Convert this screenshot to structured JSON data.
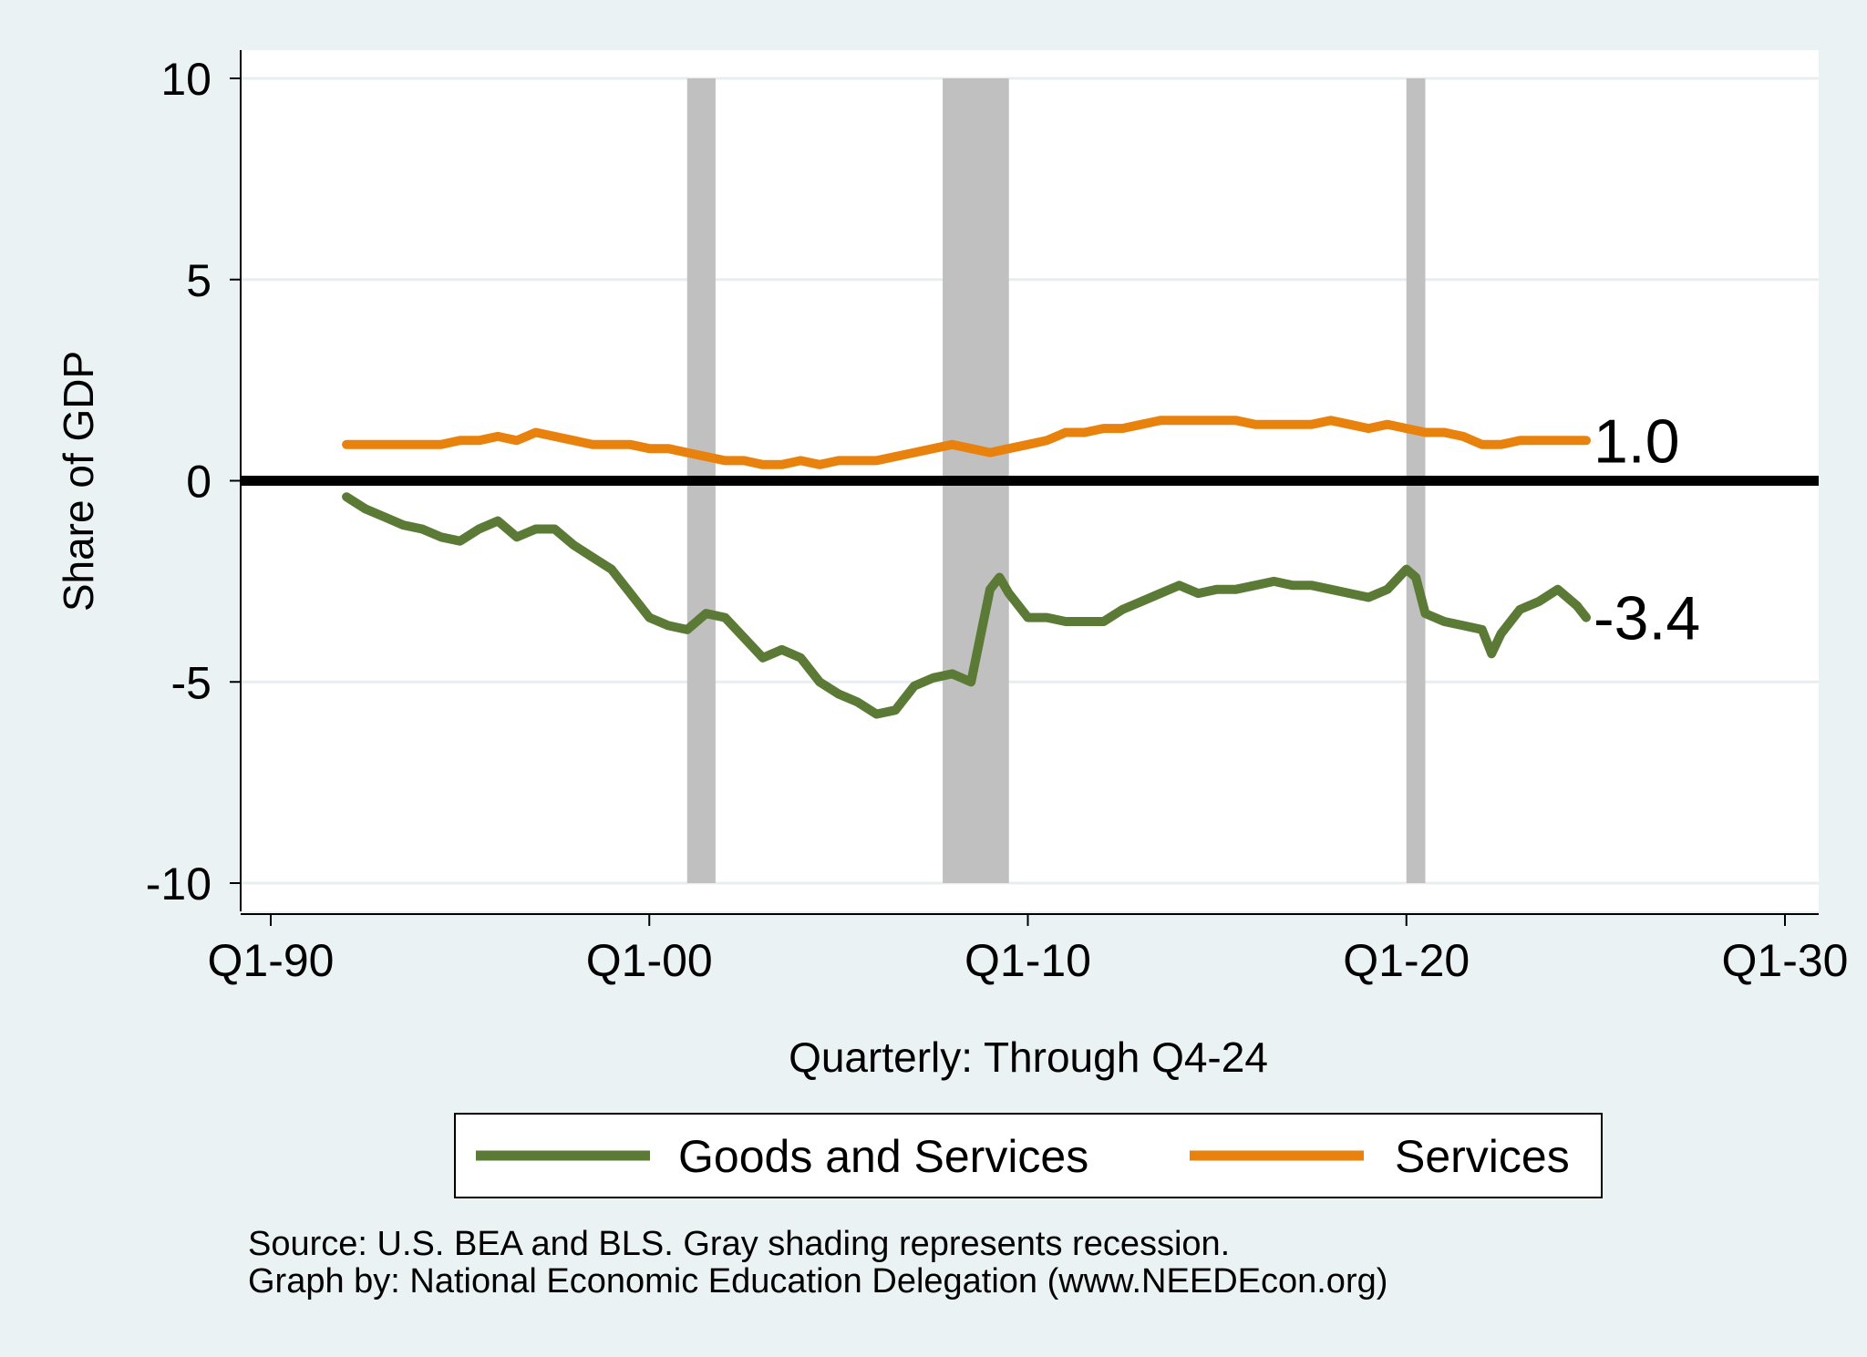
{
  "chart_data": {
    "type": "line",
    "ylabel": "Share of GDP",
    "xlabel": "Quarterly: Through Q4-24",
    "x_ticks": [
      {
        "value": 1990,
        "label": "Q1-90"
      },
      {
        "value": 2000,
        "label": "Q1-00"
      },
      {
        "value": 2010,
        "label": "Q1-10"
      },
      {
        "value": 2020,
        "label": "Q1-20"
      },
      {
        "value": 2030,
        "label": "Q1-30"
      }
    ],
    "y_ticks": [
      {
        "value": 10,
        "label": "10"
      },
      {
        "value": 5,
        "label": "5"
      },
      {
        "value": 0,
        "label": "0"
      },
      {
        "value": -5,
        "label": "-5"
      },
      {
        "value": -10,
        "label": "-10"
      }
    ],
    "xlim": [
      1990,
      2030
    ],
    "ylim": [
      -10,
      10
    ],
    "grid": true,
    "legend_position": "bottom",
    "zero_line": true,
    "recessions": [
      {
        "start": 2001.0,
        "end": 2001.75
      },
      {
        "start": 2007.75,
        "end": 2009.5
      },
      {
        "start": 2020.0,
        "end": 2020.5
      }
    ],
    "series": [
      {
        "name": "Goods and Services",
        "color": "#5a7a35",
        "end_label": "-3.4",
        "x": [
          1992.0,
          1992.5,
          1993.0,
          1993.5,
          1994.0,
          1994.5,
          1995.0,
          1995.5,
          1996.0,
          1996.5,
          1997.0,
          1997.5,
          1998.0,
          1998.5,
          1999.0,
          1999.5,
          2000.0,
          2000.5,
          2001.0,
          2001.5,
          2002.0,
          2002.5,
          2003.0,
          2003.5,
          2004.0,
          2004.5,
          2005.0,
          2005.5,
          2006.0,
          2006.5,
          2007.0,
          2007.5,
          2008.0,
          2008.5,
          2009.0,
          2009.25,
          2009.5,
          2010.0,
          2010.5,
          2011.0,
          2011.5,
          2012.0,
          2012.5,
          2013.0,
          2013.5,
          2014.0,
          2014.5,
          2015.0,
          2015.5,
          2016.0,
          2016.5,
          2017.0,
          2017.5,
          2018.0,
          2018.5,
          2019.0,
          2019.5,
          2020.0,
          2020.25,
          2020.5,
          2021.0,
          2021.5,
          2022.0,
          2022.25,
          2022.5,
          2023.0,
          2023.5,
          2024.0,
          2024.5,
          2024.75
        ],
        "y": [
          -0.4,
          -0.7,
          -0.9,
          -1.1,
          -1.2,
          -1.4,
          -1.5,
          -1.2,
          -1.0,
          -1.4,
          -1.2,
          -1.2,
          -1.6,
          -1.9,
          -2.2,
          -2.8,
          -3.4,
          -3.6,
          -3.7,
          -3.3,
          -3.4,
          -3.9,
          -4.4,
          -4.2,
          -4.4,
          -5.0,
          -5.3,
          -5.5,
          -5.8,
          -5.7,
          -5.1,
          -4.9,
          -4.8,
          -5.0,
          -2.7,
          -2.4,
          -2.8,
          -3.4,
          -3.4,
          -3.5,
          -3.5,
          -3.5,
          -3.2,
          -3.0,
          -2.8,
          -2.6,
          -2.8,
          -2.7,
          -2.7,
          -2.6,
          -2.5,
          -2.6,
          -2.6,
          -2.7,
          -2.8,
          -2.9,
          -2.7,
          -2.2,
          -2.4,
          -3.3,
          -3.5,
          -3.6,
          -3.7,
          -4.3,
          -3.8,
          -3.2,
          -3.0,
          -2.7,
          -3.1,
          -3.4
        ]
      },
      {
        "name": "Services",
        "color": "#e8820c",
        "end_label": "1.0",
        "x": [
          1992.0,
          1992.5,
          1993.0,
          1993.5,
          1994.0,
          1994.5,
          1995.0,
          1995.5,
          1996.0,
          1996.5,
          1997.0,
          1997.5,
          1998.0,
          1998.5,
          1999.0,
          1999.5,
          2000.0,
          2000.5,
          2001.0,
          2001.5,
          2002.0,
          2002.5,
          2003.0,
          2003.5,
          2004.0,
          2004.5,
          2005.0,
          2005.5,
          2006.0,
          2006.5,
          2007.0,
          2007.5,
          2008.0,
          2008.5,
          2009.0,
          2009.5,
          2010.0,
          2010.5,
          2011.0,
          2011.5,
          2012.0,
          2012.5,
          2013.0,
          2013.5,
          2014.0,
          2014.5,
          2015.0,
          2015.5,
          2016.0,
          2016.5,
          2017.0,
          2017.5,
          2018.0,
          2018.5,
          2019.0,
          2019.5,
          2020.0,
          2020.5,
          2021.0,
          2021.5,
          2022.0,
          2022.5,
          2023.0,
          2023.5,
          2024.0,
          2024.5,
          2024.75
        ],
        "y": [
          0.9,
          0.9,
          0.9,
          0.9,
          0.9,
          0.9,
          1.0,
          1.0,
          1.1,
          1.0,
          1.2,
          1.1,
          1.0,
          0.9,
          0.9,
          0.9,
          0.8,
          0.8,
          0.7,
          0.6,
          0.5,
          0.5,
          0.4,
          0.4,
          0.5,
          0.4,
          0.5,
          0.5,
          0.5,
          0.6,
          0.7,
          0.8,
          0.9,
          0.8,
          0.7,
          0.8,
          0.9,
          1.0,
          1.2,
          1.2,
          1.3,
          1.3,
          1.4,
          1.5,
          1.5,
          1.5,
          1.5,
          1.5,
          1.4,
          1.4,
          1.4,
          1.4,
          1.5,
          1.4,
          1.3,
          1.4,
          1.3,
          1.2,
          1.2,
          1.1,
          0.9,
          0.9,
          1.0,
          1.0,
          1.0,
          1.0,
          1.0
        ]
      }
    ]
  },
  "notes": {
    "source": "Source: U.S. BEA and BLS. Gray shading represents recession.",
    "credit": "Graph by: National Economic Education Delegation (www.NEEDEcon.org)"
  }
}
